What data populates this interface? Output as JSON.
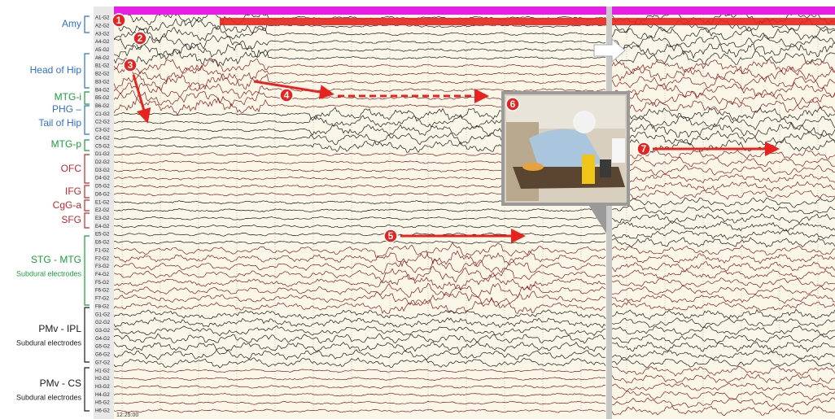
{
  "regions": [
    {
      "lines": [
        "Amy"
      ]
    },
    {
      "lines": [
        "Head of Hip"
      ]
    },
    {
      "lines": [
        "MTG-i"
      ]
    },
    {
      "lines": [
        "PHG –",
        "Tail of Hip"
      ]
    },
    {
      "lines": [
        "MTG-p"
      ]
    },
    {
      "lines": [
        "OFC"
      ]
    },
    {
      "lines": [
        "IFG"
      ]
    },
    {
      "lines": [
        "CgG-a"
      ]
    },
    {
      "lines": [
        "SFG"
      ]
    },
    {
      "lines": [
        "STG - MTG",
        "Subdural electrodes"
      ]
    },
    {
      "lines": [
        "PMv - IPL",
        "Subdural electrodes"
      ]
    },
    {
      "lines": [
        "PMv - CS",
        "Subdural electrodes"
      ]
    }
  ],
  "channels": [
    "A1-G2",
    "A2-G2",
    "A3-G2",
    "A4-G2",
    "A5-G2",
    "A6-G2",
    "B1-G2",
    "B2-G2",
    "B3-G2",
    "B4-G2",
    "B5-G2",
    "B6-G2",
    "C1-G2",
    "C2-G2",
    "C3-G2",
    "C4-G2",
    "C5-G2",
    "D1-G2",
    "D2-G2",
    "D3-G2",
    "D4-G2",
    "D5-G2",
    "D6-G2",
    "E1-G2",
    "E2-G2",
    "E3-G2",
    "E4-G2",
    "E5-G2",
    "E6-G2",
    "F1-G2",
    "F2-G2",
    "F3-G2",
    "F4-G2",
    "F5-G2",
    "F6-G2",
    "F7-G2",
    "F8-G2",
    "G1-G2",
    "G2-G2",
    "G3-G2",
    "G4-G2",
    "G5-G2",
    "G6-G2",
    "G7-G2",
    "H1-G2",
    "H2-G2",
    "H3-G2",
    "H4-G2",
    "H5-G2",
    "H6-G2"
  ],
  "markers": [
    "1",
    "2",
    "3",
    "4",
    "5",
    "6",
    "7"
  ],
  "status": "12:25:00"
}
